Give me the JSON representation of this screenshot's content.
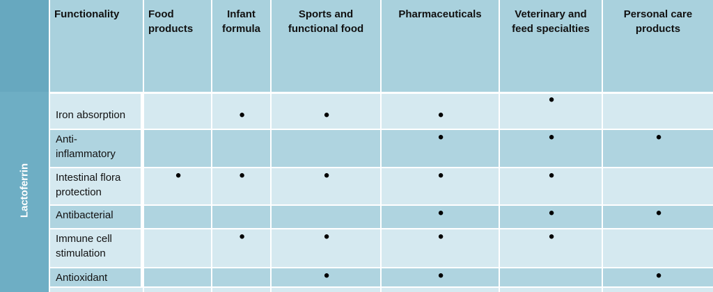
{
  "side_label": "Lactoferrin",
  "table": {
    "header": [
      "Functionality",
      "Food products",
      "Infant formula",
      "Sports and functional food",
      "Pharmaceuticals",
      "Veterinary and feed specialties",
      "Personal care products"
    ],
    "rows": [
      {
        "label": "Iron absorption",
        "cells": [
          null,
          "●",
          "●",
          "●",
          "●",
          null
        ]
      },
      {
        "label": "Anti-inflammatory",
        "cells": [
          null,
          null,
          null,
          "●",
          "●",
          "●"
        ]
      },
      {
        "label": "Intestinal flora protection",
        "cells": [
          "●",
          "●",
          "●",
          "●",
          "●",
          null
        ]
      },
      {
        "label": "Antibacterial",
        "cells": [
          null,
          null,
          null,
          "●",
          "●",
          "●"
        ]
      },
      {
        "label": "Immune cell stimulation",
        "cells": [
          null,
          "●",
          "●",
          "●",
          "●",
          null
        ]
      },
      {
        "label": "Antioxidant",
        "cells": [
          null,
          null,
          "●",
          "●",
          null,
          "●"
        ]
      }
    ]
  }
}
